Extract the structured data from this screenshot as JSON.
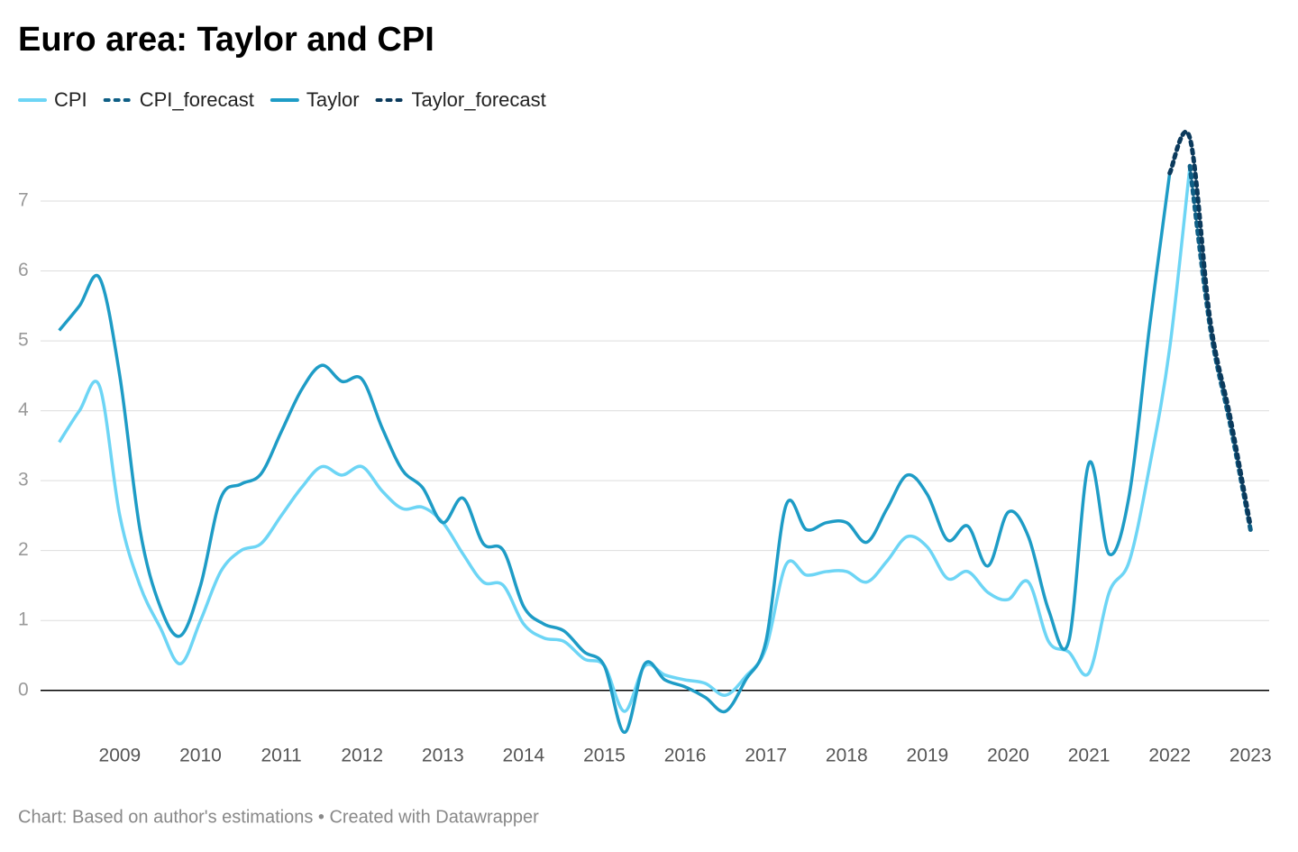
{
  "chart_data": {
    "type": "line",
    "title": "Euro area: Taylor and CPI",
    "note": "Chart: Based on author's estimations • Created with Datawrapper",
    "x": [
      2008.25,
      2008.5,
      2008.75,
      2009,
      2009.25,
      2009.5,
      2009.75,
      2010,
      2010.25,
      2010.5,
      2010.75,
      2011,
      2011.25,
      2011.5,
      2011.75,
      2012,
      2012.25,
      2012.5,
      2012.75,
      2013,
      2013.25,
      2013.5,
      2013.75,
      2014,
      2014.25,
      2014.5,
      2014.75,
      2015,
      2015.25,
      2015.5,
      2015.75,
      2016,
      2016.25,
      2016.5,
      2016.75,
      2017,
      2017.25,
      2017.5,
      2017.75,
      2018,
      2018.25,
      2018.5,
      2018.75,
      2019,
      2019.25,
      2019.5,
      2019.75,
      2020,
      2020.25,
      2020.5,
      2020.75,
      2021,
      2021.25,
      2021.5,
      2021.75,
      2022,
      2022.25,
      2022.5,
      2022.75,
      2023
    ],
    "series": [
      {
        "name": "CPI",
        "color": "#6dd5f5",
        "style": "solid",
        "values": [
          3.55,
          4.0,
          4.35,
          2.5,
          1.5,
          0.9,
          0.38,
          1.0,
          1.7,
          2.0,
          2.1,
          2.5,
          2.9,
          3.2,
          3.08,
          3.2,
          2.85,
          2.6,
          2.62,
          2.4,
          1.95,
          1.55,
          1.5,
          0.95,
          0.75,
          0.7,
          0.45,
          0.35,
          -0.3,
          0.35,
          0.22,
          0.15,
          0.1,
          -0.07,
          0.2,
          0.6,
          1.8,
          1.65,
          1.7,
          1.7,
          1.55,
          1.85,
          2.2,
          2.05,
          1.6,
          1.7,
          1.4,
          1.3,
          1.55,
          0.7,
          0.55,
          0.25,
          1.4,
          1.85,
          3.2,
          4.9,
          7.5,
          null,
          null,
          null
        ]
      },
      {
        "name": "CPI_forecast",
        "color": "#0f5f86",
        "style": "dotted",
        "values": [
          null,
          null,
          null,
          null,
          null,
          null,
          null,
          null,
          null,
          null,
          null,
          null,
          null,
          null,
          null,
          null,
          null,
          null,
          null,
          null,
          null,
          null,
          null,
          null,
          null,
          null,
          null,
          null,
          null,
          null,
          null,
          null,
          null,
          null,
          null,
          null,
          null,
          null,
          null,
          null,
          null,
          null,
          null,
          null,
          null,
          null,
          null,
          null,
          null,
          null,
          null,
          null,
          null,
          null,
          null,
          null,
          7.5,
          5.2,
          3.8,
          2.3
        ]
      },
      {
        "name": "Taylor",
        "color": "#1e9cc6",
        "style": "solid",
        "values": [
          5.15,
          5.5,
          5.9,
          4.5,
          2.3,
          1.2,
          0.78,
          1.5,
          2.75,
          2.95,
          3.1,
          3.7,
          4.3,
          4.65,
          4.42,
          4.45,
          3.75,
          3.15,
          2.9,
          2.4,
          2.75,
          2.1,
          2.0,
          1.2,
          0.95,
          0.85,
          0.55,
          0.35,
          -0.6,
          0.38,
          0.15,
          0.05,
          -0.1,
          -0.3,
          0.15,
          0.7,
          2.65,
          2.3,
          2.4,
          2.4,
          2.12,
          2.6,
          3.08,
          2.8,
          2.15,
          2.35,
          1.78,
          2.55,
          2.2,
          1.15,
          0.7,
          3.25,
          1.95,
          2.8,
          5.2,
          7.4,
          null,
          null,
          null,
          null
        ]
      },
      {
        "name": "Taylor_forecast",
        "color": "#0b3a5c",
        "style": "dotted",
        "values": [
          null,
          null,
          null,
          null,
          null,
          null,
          null,
          null,
          null,
          null,
          null,
          null,
          null,
          null,
          null,
          null,
          null,
          null,
          null,
          null,
          null,
          null,
          null,
          null,
          null,
          null,
          null,
          null,
          null,
          null,
          null,
          null,
          null,
          null,
          null,
          null,
          null,
          null,
          null,
          null,
          null,
          null,
          null,
          null,
          null,
          null,
          null,
          null,
          null,
          null,
          null,
          null,
          null,
          null,
          null,
          7.4,
          7.9,
          5.3,
          3.9,
          2.35
        ]
      }
    ],
    "xlim": [
      2008.22,
      2023.22
    ],
    "xticks": [
      2009,
      2010,
      2011,
      2012,
      2013,
      2014,
      2015,
      2016,
      2017,
      2018,
      2019,
      2020,
      2021,
      2022,
      2023
    ],
    "ylim": [
      -0.7,
      8.2
    ],
    "yticks": [
      0,
      1,
      2,
      3,
      4,
      5,
      6,
      7
    ],
    "grid": true
  }
}
